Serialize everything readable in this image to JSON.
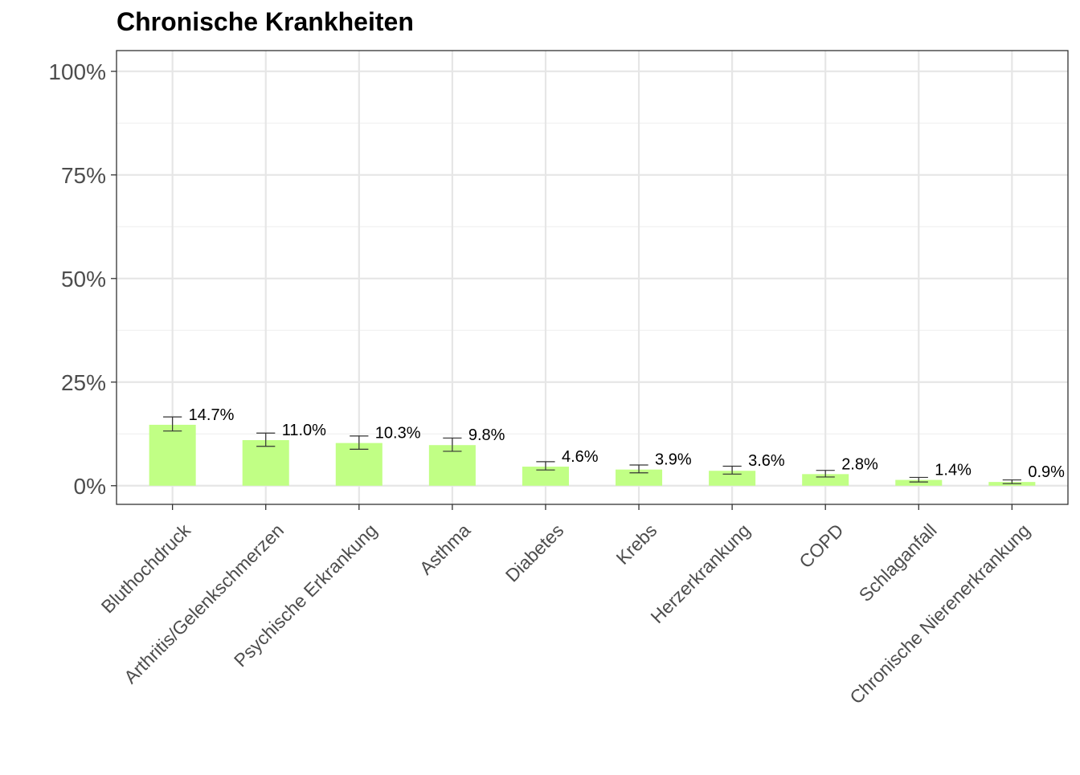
{
  "chart_data": {
    "type": "bar",
    "title": "Chronische Krankheiten",
    "xlabel": "",
    "ylabel": "",
    "categories": [
      "Bluthochdruck",
      "Arthritis/Gelenkschmerzen",
      "Psychische Erkrankung",
      "Asthma",
      "Diabetes",
      "Krebs",
      "Herzerkrankung",
      "COPD",
      "Schlaganfall",
      "Chronische Nierenerkrankung"
    ],
    "values": [
      14.7,
      11.0,
      10.3,
      9.8,
      4.6,
      3.9,
      3.6,
      2.8,
      1.4,
      0.9
    ],
    "value_labels": [
      "14.7%",
      "11.0%",
      "10.3%",
      "9.8%",
      "4.6%",
      "3.9%",
      "3.6%",
      "2.8%",
      "1.4%",
      "0.9%"
    ],
    "error_low": [
      13.2,
      9.5,
      8.8,
      8.3,
      3.8,
      3.1,
      2.8,
      2.1,
      0.9,
      0.5
    ],
    "error_high": [
      16.6,
      12.7,
      12.0,
      11.5,
      5.8,
      5.0,
      4.7,
      3.7,
      2.0,
      1.4
    ],
    "ylim": [
      -4.5,
      105
    ],
    "y_ticks": [
      0,
      25,
      50,
      75,
      100
    ],
    "y_tick_labels": [
      "0%",
      "25%",
      "50%",
      "75%",
      "100%"
    ],
    "grid": true,
    "colors": {
      "bar": "#c1ff85",
      "grid_major": "#e6e6e6",
      "grid_minor": "#f0f0f0",
      "border": "#333333",
      "errorbar": "#333333"
    }
  }
}
